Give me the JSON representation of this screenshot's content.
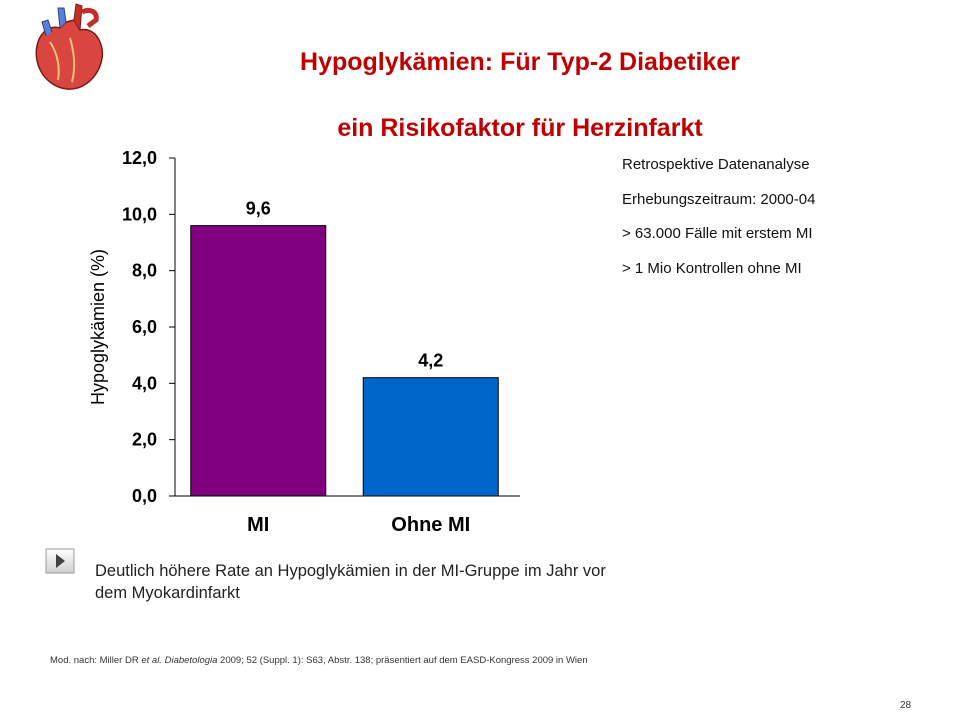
{
  "slide": {
    "title_line1": "Hypoglykämien: Für Typ-2 Diabetiker",
    "title_line2": "ein Risikofaktor für Herzinfarkt",
    "colors": {
      "title": "#c00000",
      "bar_mi": "#800080",
      "bar_ohne_mi": "#0066cc"
    },
    "info": [
      "Retrospektive Datenanalyse",
      "Erhebungszeitraum: 2000-04",
      "> 63.000 Fälle mit erstem MI",
      "> 1 Mio Kontrollen ohne MI"
    ],
    "bullet_text": "Deutlich höhere Rate an Hypoglykämien in der MI-Gruppe im Jahr vor dem Myokardinfarkt",
    "bullet_icon": "play-arrow-icon",
    "logo_icon": "heart-icon",
    "footnote": {
      "prefix": "Mod. nach: Miller DR ",
      "etal": "et al.",
      "journal": "Diabetologia",
      "suffix": " 2009; 52 (Suppl. 1): S63, Abstr. 138; präsentiert auf dem EASD-Kongress 2009 in Wien"
    },
    "page_number": "28"
  },
  "chart_data": {
    "type": "bar",
    "title": "",
    "categories": [
      "MI",
      "Ohne MI"
    ],
    "values": [
      9.6,
      4.2
    ],
    "data_labels": [
      "9,6",
      "4,2"
    ],
    "ylabel": "Hypoglykämien (%)",
    "xlabel": "",
    "ylim": [
      0,
      12
    ],
    "yticks": [
      "0,0",
      "2,0",
      "4,0",
      "6,0",
      "8,0",
      "10,0",
      "12,0"
    ],
    "grid": false,
    "legend": "none"
  }
}
